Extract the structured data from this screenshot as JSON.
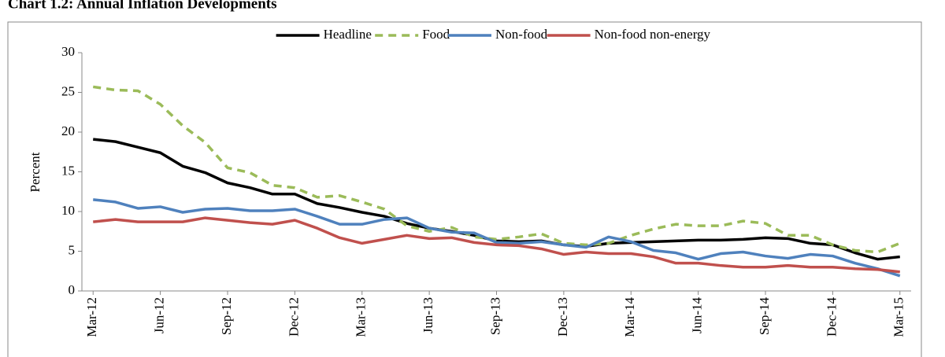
{
  "chart_data": {
    "type": "line",
    "title": "Chart 1.2: Annual Inflation Developments",
    "ylabel": "Percent",
    "categories": [
      "Mar-12",
      null,
      null,
      "Jun-12",
      null,
      null,
      "Sep-12",
      null,
      null,
      "Dec-12",
      null,
      null,
      "Mar-13",
      null,
      null,
      "Jun-13",
      null,
      null,
      "Sep-13",
      null,
      null,
      "Dec-13",
      null,
      null,
      "Mar-14",
      null,
      null,
      "Jun-14",
      null,
      null,
      "Sep-14",
      null,
      null,
      "Dec-14",
      null,
      null,
      "Mar-15"
    ],
    "series": [
      {
        "name": "Headline",
        "color": "#000000",
        "dash": false,
        "values": [
          19.1,
          18.8,
          18.1,
          17.4,
          15.7,
          14.9,
          13.6,
          13.0,
          12.2,
          12.2,
          11.0,
          10.5,
          9.9,
          9.4,
          8.5,
          7.9,
          7.5,
          7.0,
          6.3,
          6.2,
          6.3,
          5.8,
          5.6,
          6.0,
          6.1,
          6.2,
          6.3,
          6.4,
          6.4,
          6.5,
          6.7,
          6.6,
          6.0,
          5.8,
          4.8,
          4.0,
          4.3
        ]
      },
      {
        "name": "Food",
        "color": "#9bbb59",
        "dash": true,
        "values": [
          25.7,
          25.3,
          25.2,
          23.5,
          20.8,
          18.7,
          15.5,
          14.9,
          13.3,
          13.0,
          11.8,
          12.0,
          11.2,
          10.3,
          8.2,
          7.5,
          8.0,
          6.8,
          6.5,
          6.8,
          7.2,
          6.0,
          5.8,
          6.0,
          7.0,
          7.8,
          8.4,
          8.2,
          8.2,
          8.8,
          8.5,
          7.0,
          7.0,
          5.8,
          5.1,
          4.9,
          6.0
        ]
      },
      {
        "name": "Non-food",
        "color": "#4f81bd",
        "dash": false,
        "values": [
          11.5,
          11.2,
          10.4,
          10.6,
          9.9,
          10.3,
          10.4,
          10.1,
          10.1,
          10.3,
          9.4,
          8.4,
          8.4,
          9.0,
          9.2,
          7.9,
          7.4,
          7.3,
          6.1,
          6.0,
          6.2,
          5.8,
          5.5,
          6.8,
          6.2,
          5.1,
          4.8,
          4.0,
          4.7,
          4.9,
          4.4,
          4.1,
          4.6,
          4.4,
          3.5,
          2.8,
          1.9
        ]
      },
      {
        "name": "Non-food non-energy",
        "color": "#c0504d",
        "dash": false,
        "values": [
          8.7,
          9.0,
          8.7,
          8.7,
          8.7,
          9.2,
          8.9,
          8.6,
          8.4,
          8.9,
          7.9,
          6.7,
          6.0,
          6.5,
          7.0,
          6.6,
          6.7,
          6.1,
          5.8,
          5.7,
          5.3,
          4.6,
          4.9,
          4.7,
          4.7,
          4.3,
          3.5,
          3.5,
          3.2,
          3.0,
          3.0,
          3.2,
          3.0,
          3.0,
          2.8,
          2.7,
          2.4
        ]
      }
    ],
    "ylim": [
      0,
      30
    ],
    "yticks": [
      0,
      5,
      10,
      15,
      20,
      25,
      30
    ],
    "legend": "top"
  }
}
